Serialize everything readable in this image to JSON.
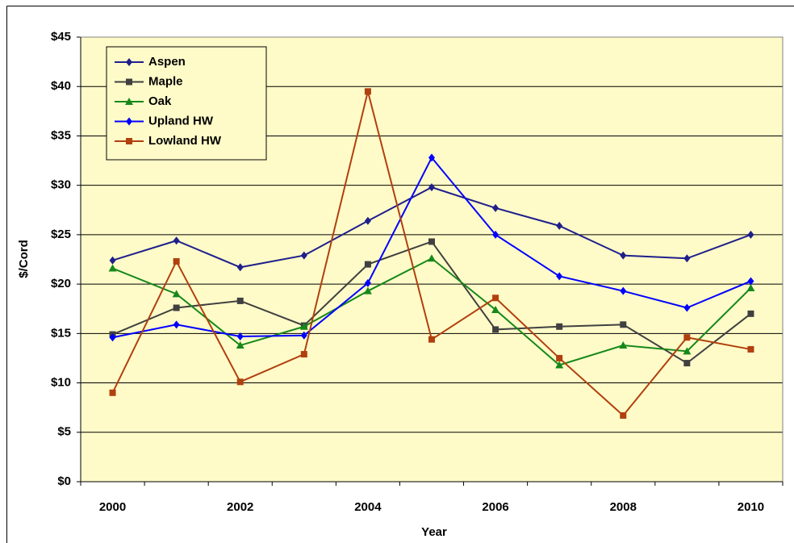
{
  "chart_data": {
    "type": "line",
    "x_label": "Year",
    "y_label": "$/Cord",
    "categories": [
      "2000",
      null,
      "2002",
      null,
      "2004",
      null,
      "2006",
      null,
      "2008",
      null,
      "2010"
    ],
    "ylim": [
      0,
      45
    ],
    "yticks": [
      {
        "value": 0,
        "label": "$0"
      },
      {
        "value": 5,
        "label": "$5"
      },
      {
        "value": 10,
        "label": "$10"
      },
      {
        "value": 15,
        "label": "$15"
      },
      {
        "value": 20,
        "label": "$20"
      },
      {
        "value": 25,
        "label": "$25"
      },
      {
        "value": 30,
        "label": "$30"
      },
      {
        "value": 35,
        "label": "$35"
      },
      {
        "value": 40,
        "label": "$40"
      },
      {
        "value": 45,
        "label": "$45"
      }
    ],
    "grid": true,
    "legend": "upper left",
    "background": "#fffbc8",
    "series": [
      {
        "name": "Aspen",
        "color": "#1f1f8c",
        "marker": "diamond",
        "values": [
          22.4,
          24.4,
          21.7,
          22.9,
          26.4,
          29.8,
          27.7,
          25.9,
          22.9,
          22.6,
          25.0
        ]
      },
      {
        "name": "Maple",
        "color": "#404040",
        "marker": "square",
        "values": [
          14.9,
          17.6,
          18.3,
          15.8,
          22.0,
          24.3,
          15.4,
          15.7,
          15.9,
          12.0,
          17.0
        ]
      },
      {
        "name": "Oak",
        "color": "#16881a",
        "marker": "triangle",
        "values": [
          21.6,
          19.0,
          13.8,
          15.7,
          19.3,
          22.6,
          17.4,
          11.8,
          13.8,
          13.2,
          19.6
        ]
      },
      {
        "name": "Upland HW",
        "color": "#0000ff",
        "marker": "diamond",
        "values": [
          14.6,
          15.9,
          14.7,
          14.8,
          20.1,
          32.8,
          25.0,
          20.8,
          19.3,
          17.6,
          20.3
        ]
      },
      {
        "name": "Lowland HW",
        "color": "#b0400e",
        "marker": "square",
        "values": [
          9.0,
          22.3,
          10.1,
          12.9,
          39.5,
          14.4,
          18.6,
          12.5,
          6.7,
          14.6,
          13.4
        ]
      }
    ]
  }
}
